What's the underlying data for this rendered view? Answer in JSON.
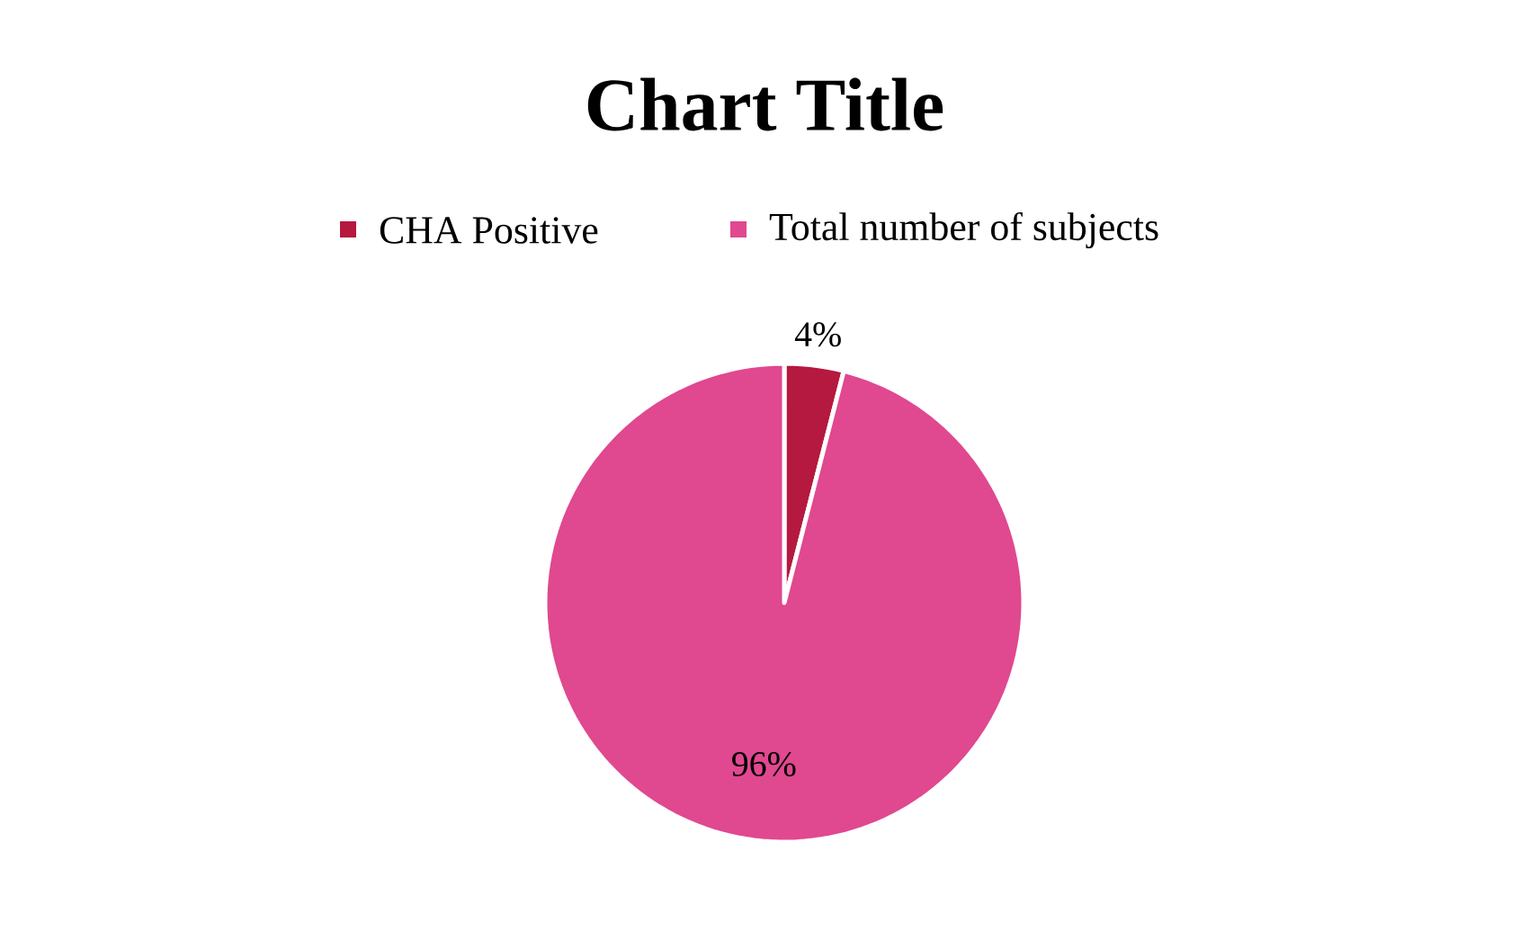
{
  "chart_data": {
    "type": "pie",
    "title": "Chart Title",
    "categories": [
      "CHA Positive",
      "Total number of subjects"
    ],
    "values": [
      4,
      96
    ],
    "value_labels": [
      "4%",
      "96%"
    ],
    "colors": [
      "#b5193f",
      "#e0488f"
    ],
    "legend": "top"
  }
}
